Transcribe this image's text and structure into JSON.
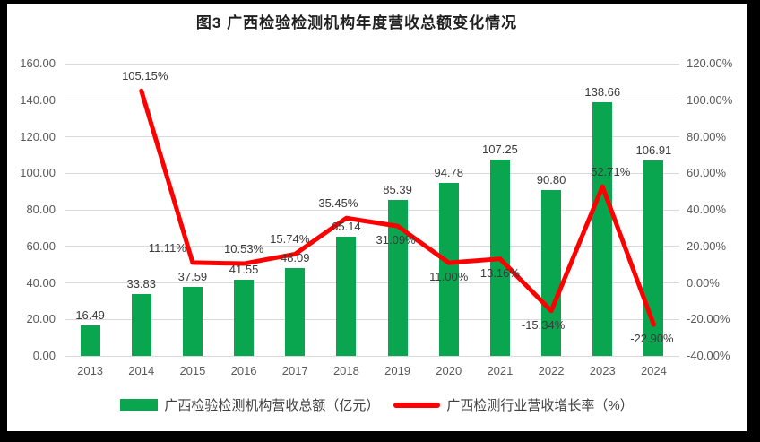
{
  "figure": {
    "title": "图3 广西检验检测机构年度营收总额变化情况"
  },
  "chart_data": {
    "type": "bar",
    "subtype": "bar+line combo, dual axis",
    "title": "图3 广西检验检测机构年度营收总额变化情况",
    "categories": [
      "2013",
      "2014",
      "2015",
      "2016",
      "2017",
      "2018",
      "2019",
      "2020",
      "2021",
      "2022",
      "2023",
      "2024"
    ],
    "series": [
      {
        "name": "广西检验检测机构营收总额（亿元）",
        "type": "bar",
        "axis": "left",
        "color": "#0aa64f",
        "values": [
          16.49,
          33.83,
          37.59,
          41.55,
          48.09,
          65.14,
          85.39,
          94.78,
          107.25,
          90.8,
          138.66,
          106.91
        ],
        "labels": [
          "16.49",
          "33.83",
          "37.59",
          "41.55",
          "48.09",
          "65.14",
          "85.39",
          "94.78",
          "107.25",
          "90.80",
          "138.66",
          "106.91"
        ]
      },
      {
        "name": "广西检测行业营收增长率（%）",
        "type": "line",
        "axis": "right",
        "color": "#fe0000",
        "values": [
          null,
          105.15,
          11.11,
          10.53,
          15.74,
          35.45,
          31.09,
          11.0,
          13.16,
          -15.34,
          52.71,
          -22.9
        ],
        "labels": [
          null,
          "105.15%",
          "11.11%",
          "10.53%",
          "15.74%",
          "35.45%",
          "31.09%",
          "11.00%",
          "13.16%",
          "-15.34%",
          "52.71%",
          "-22.90%"
        ]
      }
    ],
    "left_axis": {
      "min": 0,
      "max": 160,
      "step": 20,
      "ticks": [
        "0.00",
        "20.00",
        "40.00",
        "60.00",
        "80.00",
        "100.00",
        "120.00",
        "140.00",
        "160.00"
      ]
    },
    "right_axis": {
      "min": -40,
      "max": 120,
      "step": 20,
      "ticks": [
        "-40.00%",
        "-20.00%",
        "0.00%",
        "20.00%",
        "40.00%",
        "60.00%",
        "80.00%",
        "100.00%",
        "120.00%"
      ]
    },
    "grid": true,
    "legend_position": "bottom",
    "label_layout": {
      "line_label_below": [
        false,
        false,
        false,
        false,
        false,
        true,
        true,
        true,
        true,
        false,
        true
      ],
      "line_label_dx": [
        4,
        -28,
        0,
        -6,
        -9,
        -2,
        0,
        0,
        -9,
        9,
        -2
      ]
    }
  },
  "colors": {
    "bar": "#0aa64f",
    "line": "#fe0000",
    "grid": "#d9d9d9",
    "axis_text": "#595959",
    "label_text": "#3b3b3b",
    "frame": "#000000",
    "background": "#ffffff"
  }
}
